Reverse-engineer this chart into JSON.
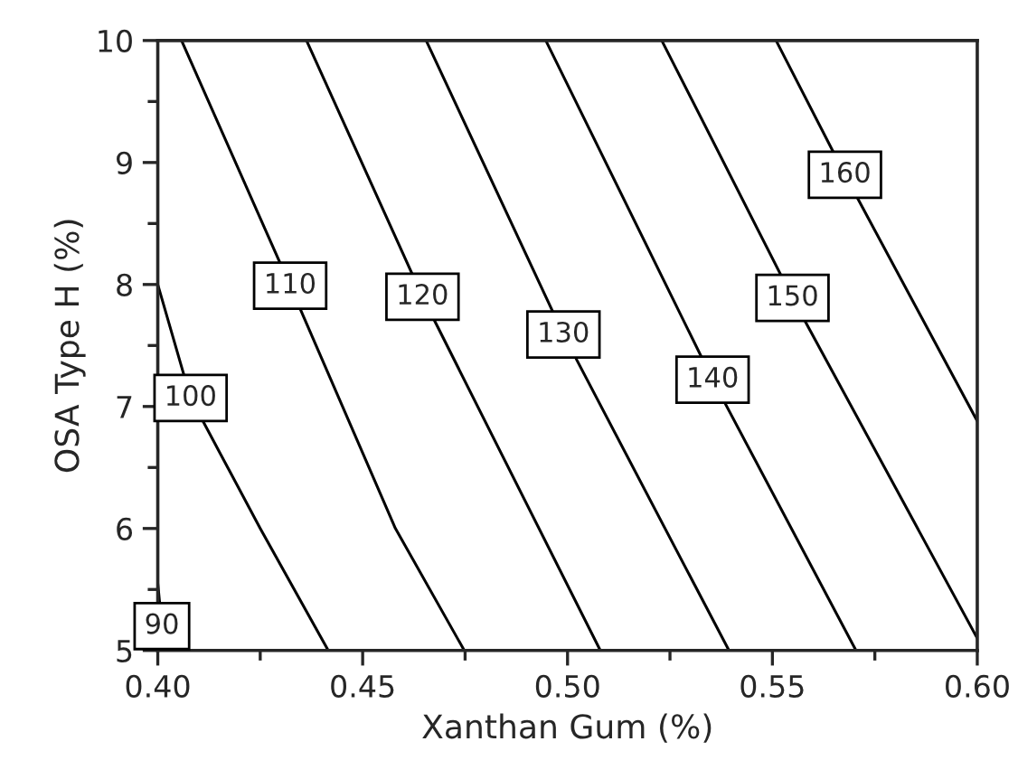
{
  "chart_data": {
    "type": "line",
    "xlabel": "Xanthan Gum (%)",
    "ylabel": "OSA Type H (%)",
    "xlim": [
      0.4,
      0.6
    ],
    "ylim": [
      5,
      10
    ],
    "xticks": [
      {
        "value": 0.4,
        "label": "0.40"
      },
      {
        "value": 0.45,
        "label": "0.45"
      },
      {
        "value": 0.5,
        "label": "0.50"
      },
      {
        "value": 0.55,
        "label": "0.55"
      },
      {
        "value": 0.6,
        "label": "0.60"
      }
    ],
    "yticks": [
      5,
      6,
      7,
      8,
      9,
      10
    ],
    "grid": false,
    "legend": false,
    "marker": "none",
    "line_style": "solid",
    "series": [
      {
        "name": "90",
        "color": "#000000",
        "x": [
          0.4,
          0.401,
          0.403
        ],
        "values": [
          5.55,
          5.2,
          5.0
        ]
      },
      {
        "name": "100",
        "color": "#000000",
        "x": [
          0.4,
          0.408,
          0.425,
          0.4416
        ],
        "values": [
          8.0,
          7.07,
          6.0,
          5.0
        ]
      },
      {
        "name": "110",
        "color": "#000000",
        "x": [
          0.4058,
          0.4323,
          0.458,
          0.4748
        ],
        "values": [
          10.0,
          7.99,
          6.0,
          5.0
        ]
      },
      {
        "name": "120",
        "color": "#000000",
        "x": [
          0.4363,
          0.4646,
          0.508
        ],
        "values": [
          10.0,
          7.9,
          5.0
        ]
      },
      {
        "name": "130",
        "color": "#000000",
        "x": [
          0.4655,
          0.499,
          0.5394
        ],
        "values": [
          10.0,
          7.59,
          5.0
        ]
      },
      {
        "name": "140",
        "color": "#000000",
        "x": [
          0.4947,
          0.5354,
          0.5704
        ],
        "values": [
          10.0,
          7.22,
          5.0
        ]
      },
      {
        "name": "150",
        "color": "#000000",
        "x": [
          0.523,
          0.5549,
          0.6
        ],
        "values": [
          10.0,
          7.89,
          5.1
        ]
      },
      {
        "name": "160",
        "color": "#000000",
        "x": [
          0.5509,
          0.5677,
          0.6
        ],
        "values": [
          10.0,
          8.9,
          6.88
        ]
      }
    ]
  }
}
